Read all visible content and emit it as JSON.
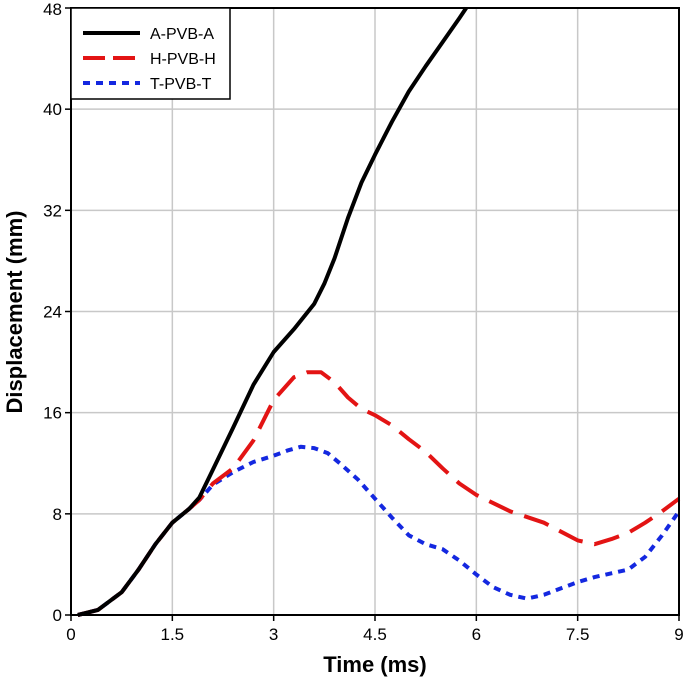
{
  "chart_data": {
    "type": "line",
    "title": "",
    "xlabel": "Time (ms)",
    "ylabel": "Displacement (mm)",
    "xlim": [
      0,
      9
    ],
    "ylim": [
      0,
      48
    ],
    "xticks": [
      0,
      1.5,
      3,
      4.5,
      6,
      7.5,
      9
    ],
    "yticks": [
      0,
      8,
      16,
      24,
      32,
      40,
      48
    ],
    "xtick_labels": [
      "0",
      "1.5",
      "3",
      "4.5",
      "6",
      "7.5",
      "9"
    ],
    "ytick_labels": [
      "0",
      "8",
      "16",
      "24",
      "32",
      "40",
      "48"
    ],
    "grid": true,
    "legend_position": "top-left",
    "series": [
      {
        "name": "A-PVB-A",
        "color": "#000000",
        "style": "solid",
        "x": [
          0.1,
          0.4,
          0.75,
          1.0,
          1.25,
          1.5,
          1.75,
          1.9,
          2.1,
          2.4,
          2.7,
          3.0,
          3.3,
          3.6,
          3.75,
          3.9,
          4.1,
          4.3,
          4.5,
          4.75,
          5.0,
          5.25,
          5.5,
          5.75,
          5.85
        ],
        "y": [
          0,
          0.4,
          1.8,
          3.6,
          5.6,
          7.3,
          8.4,
          9.3,
          11.5,
          14.8,
          18.2,
          20.8,
          22.6,
          24.6,
          26.2,
          28.2,
          31.4,
          34.2,
          36.4,
          39.0,
          41.4,
          43.4,
          45.3,
          47.2,
          48
        ]
      },
      {
        "name": "H-PVB-H",
        "color": "#e31414",
        "style": "long-dash",
        "x": [
          0.1,
          0.4,
          0.75,
          1.0,
          1.25,
          1.5,
          1.75,
          1.9,
          2.1,
          2.4,
          2.7,
          3.0,
          3.3,
          3.5,
          3.7,
          3.9,
          4.1,
          4.3,
          4.5,
          4.75,
          5.0,
          5.25,
          5.5,
          5.75,
          6.0,
          6.5,
          7.0,
          7.5,
          7.75,
          8.0,
          8.25,
          8.5,
          8.75,
          9.0
        ],
        "y": [
          0,
          0.4,
          1.8,
          3.6,
          5.6,
          7.3,
          8.4,
          9.1,
          10.4,
          11.6,
          13.8,
          17.0,
          18.8,
          19.2,
          19.2,
          18.4,
          17.2,
          16.3,
          15.8,
          15.0,
          13.9,
          12.9,
          11.6,
          10.4,
          9.5,
          8.2,
          7.3,
          5.9,
          5.6,
          6.0,
          6.5,
          7.3,
          8.2,
          9.2
        ]
      },
      {
        "name": "T-PVB-T",
        "color": "#1428e0",
        "style": "short-dash",
        "x": [
          0.1,
          0.4,
          0.75,
          1.0,
          1.25,
          1.5,
          1.75,
          1.9,
          2.1,
          2.4,
          2.7,
          3.0,
          3.2,
          3.4,
          3.6,
          3.8,
          4.0,
          4.25,
          4.5,
          4.75,
          5.0,
          5.25,
          5.5,
          5.75,
          6.0,
          6.25,
          6.5,
          6.75,
          7.0,
          7.25,
          7.5,
          7.75,
          8.0,
          8.25,
          8.5,
          8.75,
          9.0
        ],
        "y": [
          0,
          0.4,
          1.8,
          3.6,
          5.6,
          7.3,
          8.4,
          9.1,
          10.3,
          11.3,
          12.1,
          12.6,
          13.0,
          13.3,
          13.2,
          12.8,
          11.9,
          10.7,
          9.2,
          7.7,
          6.3,
          5.6,
          5.2,
          4.3,
          3.2,
          2.2,
          1.6,
          1.3,
          1.6,
          2.1,
          2.6,
          3.0,
          3.3,
          3.6,
          4.6,
          6.3,
          8.2
        ]
      }
    ]
  }
}
